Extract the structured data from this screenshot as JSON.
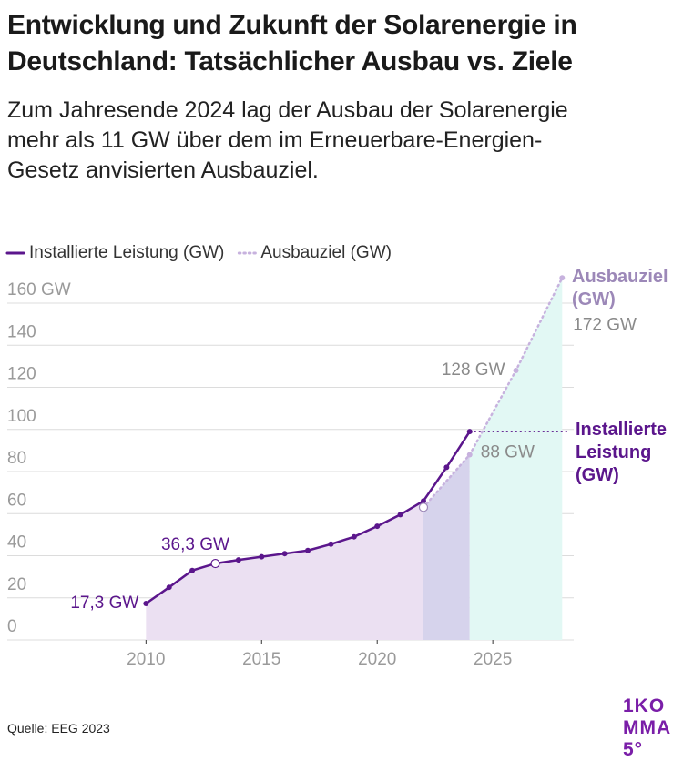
{
  "chart_data": {
    "type": "line",
    "title": "Entwicklung und Zukunft der Solarenergie in Deutschland: Tatsächlicher Ausbau vs. Ziele",
    "subtitle": "Zum Jahresende 2024 lag der Ausbau der Solarenergie mehr als 11 GW über dem im Erneuerbare-Energien-Gesetz anvisierten Ausbauziel.",
    "source": "Quelle: EEG 2023",
    "logo": "1KOMMA5°",
    "series": [
      {
        "name": "Installierte Leistung (GW)",
        "color": "#5b168c",
        "x": [
          2010,
          2011,
          2012,
          2013,
          2014,
          2015,
          2016,
          2017,
          2018,
          2019,
          2020,
          2021,
          2022,
          2023,
          2024
        ],
        "values": [
          17.3,
          25,
          33,
          36.3,
          38,
          39.5,
          41,
          42.5,
          45.5,
          49,
          54,
          59.5,
          66,
          82,
          99
        ],
        "value_labels": [
          "17,3 GW",
          null,
          null,
          "36,3 GW",
          null,
          null,
          null,
          null,
          null,
          null,
          null,
          null,
          null,
          null,
          null
        ]
      },
      {
        "name": "Ausbauziel (GW)",
        "color": "#c7b2de",
        "x": [
          2022,
          2024,
          2026,
          2028
        ],
        "values": [
          63,
          88,
          128,
          172
        ],
        "value_labels": [
          null,
          "88 GW",
          "128 GW",
          "172 GW"
        ]
      }
    ],
    "xlim": [
      2004,
      2028.5
    ],
    "xticks": [
      2010,
      2015,
      2020,
      2025
    ],
    "ylim": [
      0,
      160
    ],
    "yticks": [
      0,
      20,
      40,
      60,
      80,
      100,
      120,
      140,
      {
        "value": 160,
        "label": "160 GW"
      }
    ],
    "grid": true
  }
}
